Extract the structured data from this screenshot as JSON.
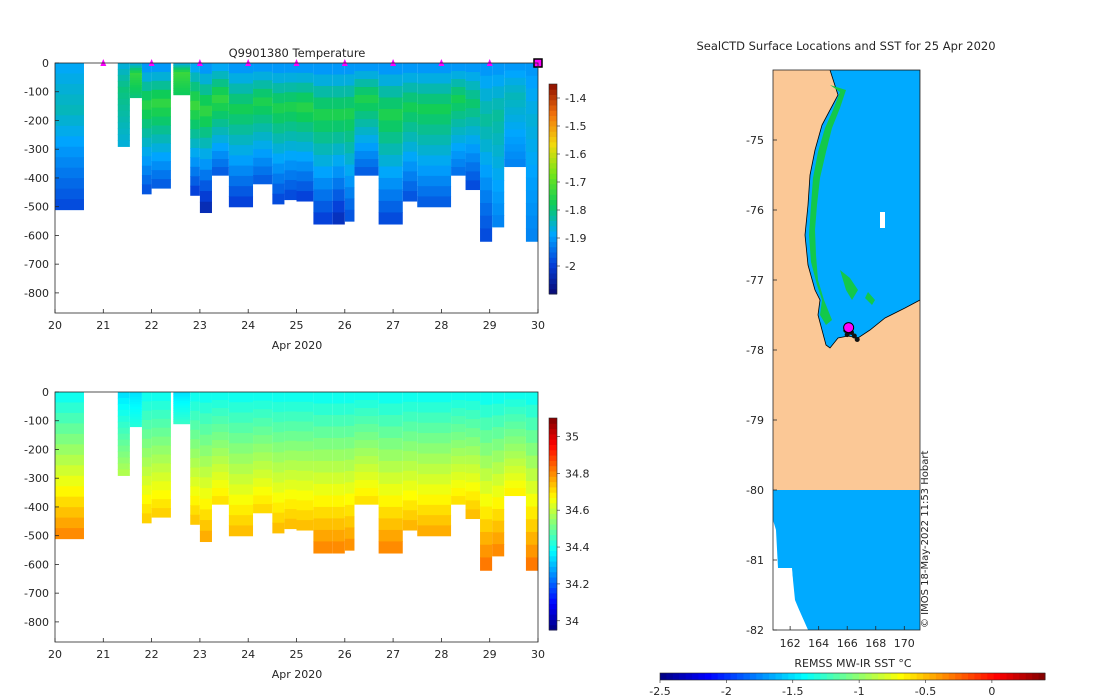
{
  "chart_data": [
    {
      "type": "heatmap",
      "panel": "temperature-section",
      "title": "Q9901380  Temperature",
      "xlabel": "Apr 2020",
      "x_ticks": [
        "20",
        "21",
        "22",
        "23",
        "24",
        "25",
        "26",
        "27",
        "28",
        "29",
        "30"
      ],
      "xlim": [
        20,
        30
      ],
      "ylim": [
        0,
        -870
      ],
      "y_ticks": [
        "0",
        "-100",
        "-200",
        "-300",
        "-400",
        "-500",
        "-600",
        "-700",
        "-800"
      ],
      "colorbar": {
        "min": -2.1,
        "max": -1.35,
        "ticks": [
          "-1.4",
          "-1.5",
          "-1.6",
          "-1.7",
          "-1.8",
          "-1.9",
          "-2"
        ]
      },
      "surface_markers_days": [
        21,
        22,
        23,
        24,
        25,
        26,
        27,
        28,
        29,
        30
      ],
      "profiles": [
        {
          "start": 20.0,
          "end": 20.6,
          "depth": 510,
          "v0": -1.88,
          "vmid": -1.84,
          "v1": -1.98
        },
        {
          "start": 21.3,
          "end": 21.55,
          "depth": 290,
          "v0": -1.86,
          "vmid": -1.8,
          "v1": -1.86
        },
        {
          "start": 21.55,
          "end": 21.8,
          "depth": 120,
          "v0": -1.86,
          "vmid": -1.74,
          "v1": -1.8
        },
        {
          "start": 21.8,
          "end": 22.0,
          "depth": 455,
          "v0": -1.9,
          "vmid": -1.75,
          "v1": -1.97
        },
        {
          "start": 22.0,
          "end": 22.4,
          "depth": 435,
          "v0": -1.9,
          "vmid": -1.74,
          "v1": -1.96
        },
        {
          "start": 22.45,
          "end": 22.8,
          "depth": 110,
          "v0": -1.86,
          "vmid": -1.73,
          "v1": -1.78
        },
        {
          "start": 22.8,
          "end": 23.0,
          "depth": 460,
          "v0": -1.88,
          "vmid": -1.73,
          "v1": -1.99
        },
        {
          "start": 23.0,
          "end": 23.25,
          "depth": 520,
          "v0": -1.9,
          "vmid": -1.74,
          "v1": -2.03
        },
        {
          "start": 23.25,
          "end": 23.6,
          "depth": 390,
          "v0": -1.88,
          "vmid": -1.74,
          "v1": -1.96
        },
        {
          "start": 23.6,
          "end": 24.1,
          "depth": 500,
          "v0": -1.9,
          "vmid": -1.77,
          "v1": -1.99
        },
        {
          "start": 24.1,
          "end": 24.5,
          "depth": 420,
          "v0": -1.9,
          "vmid": -1.76,
          "v1": -1.96
        },
        {
          "start": 24.5,
          "end": 24.75,
          "depth": 490,
          "v0": -1.9,
          "vmid": -1.76,
          "v1": -1.98
        },
        {
          "start": 24.75,
          "end": 25.0,
          "depth": 475,
          "v0": -1.9,
          "vmid": -1.76,
          "v1": -1.98
        },
        {
          "start": 25.0,
          "end": 25.35,
          "depth": 480,
          "v0": -1.9,
          "vmid": -1.75,
          "v1": -1.99
        },
        {
          "start": 25.35,
          "end": 25.75,
          "depth": 560,
          "v0": -1.9,
          "vmid": -1.76,
          "v1": -1.99
        },
        {
          "start": 25.75,
          "end": 26.0,
          "depth": 560,
          "v0": -1.9,
          "vmid": -1.76,
          "v1": -2.02
        },
        {
          "start": 26.0,
          "end": 26.2,
          "depth": 550,
          "v0": -1.9,
          "vmid": -1.76,
          "v1": -1.97
        },
        {
          "start": 26.2,
          "end": 26.7,
          "depth": 390,
          "v0": -1.9,
          "vmid": -1.76,
          "v1": -1.96
        },
        {
          "start": 26.7,
          "end": 27.2,
          "depth": 560,
          "v0": -1.9,
          "vmid": -1.76,
          "v1": -1.98
        },
        {
          "start": 27.2,
          "end": 27.5,
          "depth": 480,
          "v0": -1.9,
          "vmid": -1.77,
          "v1": -1.97
        },
        {
          "start": 27.5,
          "end": 28.2,
          "depth": 500,
          "v0": -1.9,
          "vmid": -1.77,
          "v1": -1.96
        },
        {
          "start": 28.2,
          "end": 28.5,
          "depth": 390,
          "v0": -1.9,
          "vmid": -1.77,
          "v1": -1.94
        },
        {
          "start": 28.5,
          "end": 28.8,
          "depth": 440,
          "v0": -1.9,
          "vmid": -1.79,
          "v1": -1.98
        },
        {
          "start": 28.8,
          "end": 29.05,
          "depth": 620,
          "v0": -1.9,
          "vmid": -1.82,
          "v1": -1.98
        },
        {
          "start": 29.05,
          "end": 29.3,
          "depth": 570,
          "v0": -1.9,
          "vmid": -1.82,
          "v1": -1.92
        },
        {
          "start": 29.3,
          "end": 29.75,
          "depth": 360,
          "v0": -1.9,
          "vmid": -1.84,
          "v1": -1.92
        },
        {
          "start": 29.75,
          "end": 30.05,
          "depth": 620,
          "v0": -1.9,
          "vmid": -1.86,
          "v1": -1.92
        }
      ]
    },
    {
      "type": "heatmap",
      "panel": "salinity-section",
      "title": "",
      "xlabel": "Apr 2020",
      "x_ticks": [
        "20",
        "21",
        "22",
        "23",
        "24",
        "25",
        "26",
        "27",
        "28",
        "29",
        "30"
      ],
      "xlim": [
        20,
        30
      ],
      "ylim": [
        0,
        -870
      ],
      "y_ticks": [
        "0",
        "-100",
        "-200",
        "-300",
        "-400",
        "-500",
        "-600",
        "-700",
        "-800"
      ],
      "colorbar": {
        "min": 33.95,
        "max": 35.1,
        "ticks": [
          "35",
          "34.8",
          "34.6",
          "34.4",
          "34.2",
          "34"
        ]
      },
      "profiles": [
        {
          "start": 20.0,
          "end": 20.6,
          "depth": 510,
          "v0": 34.4,
          "v1": 34.8
        },
        {
          "start": 21.3,
          "end": 21.55,
          "depth": 290,
          "v0": 34.35,
          "v1": 34.58
        },
        {
          "start": 21.55,
          "end": 21.8,
          "depth": 120,
          "v0": 34.35,
          "v1": 34.42
        },
        {
          "start": 21.8,
          "end": 22.0,
          "depth": 455,
          "v0": 34.4,
          "v1": 34.72
        },
        {
          "start": 22.0,
          "end": 22.4,
          "depth": 435,
          "v0": 34.4,
          "v1": 34.72
        },
        {
          "start": 22.45,
          "end": 22.8,
          "depth": 110,
          "v0": 34.35,
          "v1": 34.44
        },
        {
          "start": 22.8,
          "end": 23.0,
          "depth": 460,
          "v0": 34.4,
          "v1": 34.73
        },
        {
          "start": 23.0,
          "end": 23.25,
          "depth": 520,
          "v0": 34.4,
          "v1": 34.76
        },
        {
          "start": 23.25,
          "end": 23.6,
          "depth": 390,
          "v0": 34.4,
          "v1": 34.7
        },
        {
          "start": 23.6,
          "end": 24.1,
          "depth": 500,
          "v0": 34.4,
          "v1": 34.74
        },
        {
          "start": 24.1,
          "end": 24.5,
          "depth": 420,
          "v0": 34.4,
          "v1": 34.71
        },
        {
          "start": 24.5,
          "end": 24.75,
          "depth": 490,
          "v0": 34.4,
          "v1": 34.74
        },
        {
          "start": 24.75,
          "end": 25.0,
          "depth": 475,
          "v0": 34.4,
          "v1": 34.74
        },
        {
          "start": 25.0,
          "end": 25.35,
          "depth": 480,
          "v0": 34.4,
          "v1": 34.74
        },
        {
          "start": 25.35,
          "end": 25.75,
          "depth": 560,
          "v0": 34.4,
          "v1": 34.8
        },
        {
          "start": 25.75,
          "end": 26.0,
          "depth": 560,
          "v0": 34.4,
          "v1": 34.8
        },
        {
          "start": 26.0,
          "end": 26.2,
          "depth": 550,
          "v0": 34.4,
          "v1": 34.79
        },
        {
          "start": 26.2,
          "end": 26.7,
          "depth": 390,
          "v0": 34.4,
          "v1": 34.7
        },
        {
          "start": 26.7,
          "end": 27.2,
          "depth": 560,
          "v0": 34.4,
          "v1": 34.8
        },
        {
          "start": 27.2,
          "end": 27.5,
          "depth": 480,
          "v0": 34.4,
          "v1": 34.75
        },
        {
          "start": 27.5,
          "end": 28.2,
          "depth": 500,
          "v0": 34.4,
          "v1": 34.76
        },
        {
          "start": 28.2,
          "end": 28.5,
          "depth": 390,
          "v0": 34.4,
          "v1": 34.7
        },
        {
          "start": 28.5,
          "end": 28.8,
          "depth": 440,
          "v0": 34.4,
          "v1": 34.74
        },
        {
          "start": 28.8,
          "end": 29.05,
          "depth": 620,
          "v0": 34.4,
          "v1": 34.82
        },
        {
          "start": 29.05,
          "end": 29.3,
          "depth": 570,
          "v0": 34.4,
          "v1": 34.8
        },
        {
          "start": 29.3,
          "end": 29.75,
          "depth": 360,
          "v0": 34.4,
          "v1": 34.68
        },
        {
          "start": 29.75,
          "end": 30.05,
          "depth": 620,
          "v0": 34.4,
          "v1": 34.82
        }
      ]
    },
    {
      "type": "heatmap",
      "panel": "sst-map",
      "title": "SealCTD Surface Locations and SST for 25 Apr 2020",
      "xlabel": "",
      "x_ticks": [
        "162",
        "164",
        "166",
        "168",
        "170"
      ],
      "xlim": [
        160.8,
        171.1
      ],
      "y_ticks": [
        "-75",
        "-76",
        "-77",
        "-78",
        "-79",
        "-80",
        "-81",
        "-82"
      ],
      "ylim": [
        -82,
        -74
      ],
      "legend_label": "REMSS MW-IR SST °C",
      "colorbar": {
        "min": -2.5,
        "max": 0.4,
        "ticks": [
          "-2.5",
          "-2",
          "-1.5",
          "-1",
          "-0.5",
          "0"
        ]
      },
      "sst_ocean_value": -1.7,
      "sst_coastal_value": -1.1,
      "seal_positions": [
        {
          "lon": 166.1,
          "lat": -77.68
        },
        {
          "lon": 166.3,
          "lat": -77.75
        },
        {
          "lon": 165.9,
          "lat": -77.72
        },
        {
          "lon": 166.5,
          "lat": -77.8
        },
        {
          "lon": 166.7,
          "lat": -77.85
        },
        {
          "lon": 166.2,
          "lat": -77.65
        },
        {
          "lon": 166.0,
          "lat": -77.78
        }
      ]
    }
  ],
  "credit": "© IMOS 18-May-2022 11:53 Hobart",
  "colors": {
    "land": "#fbc896",
    "axis": "#262626",
    "marker": "#ff00ff"
  }
}
